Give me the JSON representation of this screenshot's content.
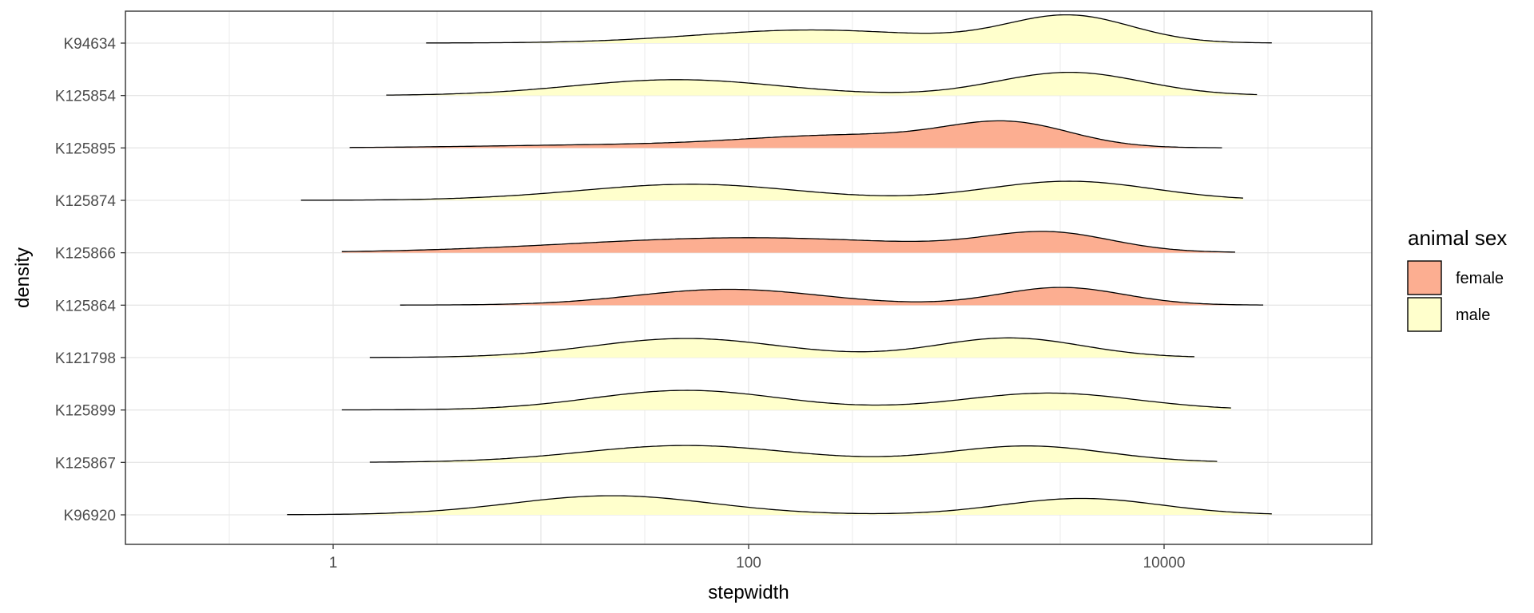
{
  "chart_data": {
    "type": "ridgeline",
    "xlabel": "stepwidth",
    "ylabel": "density",
    "x_scale": "log10",
    "xlim": [
      0.1,
      100000
    ],
    "x_major_ticks": [
      1,
      100,
      10000
    ],
    "x_tick_labels": [
      "1",
      "100",
      "10000"
    ],
    "grid": true,
    "legend": {
      "title": "animal sex",
      "placement": "right",
      "entries": [
        {
          "label": "female",
          "color": "#FCAE91"
        },
        {
          "label": "male",
          "color": "#FFFFCC"
        }
      ]
    },
    "ridges": [
      {
        "id": "K94634",
        "sex": "male",
        "range": [
          2.8,
          33000
        ],
        "peaks": [
          [
            3.0,
            0.0,
            0.0
          ],
          [
            6.0,
            0.0,
            0.0
          ],
          [
            200,
            0.48,
            0.55
          ],
          [
            3500,
            1.0,
            0.3
          ]
        ]
      },
      {
        "id": "K125854",
        "sex": "male",
        "range": [
          1.8,
          28000
        ],
        "peaks": [
          [
            3.0,
            0.0,
            0.0
          ],
          [
            45,
            0.58,
            0.5
          ],
          [
            3500,
            0.85,
            0.35
          ]
        ]
      },
      {
        "id": "K125895",
        "sex": "female",
        "range": [
          1.2,
          19000
        ],
        "peaks": [
          [
            20,
            0.1,
            0.6
          ],
          [
            300,
            0.45,
            0.5
          ],
          [
            1800,
            0.85,
            0.3
          ]
        ]
      },
      {
        "id": "K125874",
        "sex": "male",
        "range": [
          0.7,
          24000
        ],
        "peaks": [
          [
            10,
            0.05,
            0.4
          ],
          [
            55,
            0.58,
            0.5
          ],
          [
            3500,
            0.7,
            0.4
          ]
        ]
      },
      {
        "id": "K125866",
        "sex": "female",
        "range": [
          1.1,
          22000
        ],
        "peaks": [
          [
            100,
            0.55,
            0.85
          ],
          [
            2800,
            0.65,
            0.3
          ]
        ]
      },
      {
        "id": "K125864",
        "sex": "female",
        "range": [
          2.1,
          30000
        ],
        "peaks": [
          [
            80,
            0.58,
            0.45
          ],
          [
            3200,
            0.65,
            0.3
          ]
        ]
      },
      {
        "id": "K121798",
        "sex": "male",
        "range": [
          1.5,
          14000
        ],
        "peaks": [
          [
            50,
            0.7,
            0.45
          ],
          [
            1800,
            0.72,
            0.35
          ]
        ]
      },
      {
        "id": "K125899",
        "sex": "male",
        "range": [
          1.1,
          21000
        ],
        "peaks": [
          [
            50,
            0.72,
            0.45
          ],
          [
            2800,
            0.62,
            0.42
          ]
        ]
      },
      {
        "id": "K125867",
        "sex": "male",
        "range": [
          1.5,
          18000
        ],
        "peaks": [
          [
            50,
            0.62,
            0.5
          ],
          [
            2200,
            0.6,
            0.38
          ]
        ]
      },
      {
        "id": "K96920",
        "sex": "male",
        "range": [
          0.6,
          33000
        ],
        "peaks": [
          [
            22,
            0.7,
            0.48
          ],
          [
            4000,
            0.6,
            0.38
          ]
        ]
      }
    ]
  }
}
